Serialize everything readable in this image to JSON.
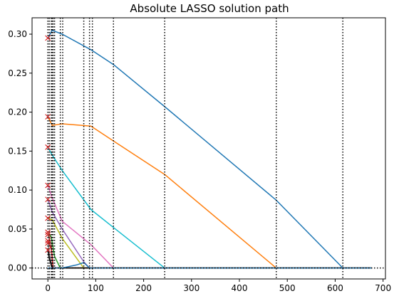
{
  "chart_data": {
    "type": "line",
    "title": "Absolute LASSO solution path",
    "xlabel": "",
    "ylabel": "",
    "xlim": [
      -33,
      705
    ],
    "ylim": [
      -0.014,
      0.321
    ],
    "xticks": [
      0,
      100,
      200,
      300,
      400,
      500,
      600,
      700
    ],
    "yticks": [
      0.0,
      0.05,
      0.1,
      0.15,
      0.2,
      0.25,
      0.3
    ],
    "ytick_labels": [
      "0.00",
      "0.05",
      "0.10",
      "0.15",
      "0.20",
      "0.25",
      "0.30"
    ],
    "grid": false,
    "legend": "none",
    "vlines": [
      0,
      3,
      7,
      9,
      11,
      14,
      26,
      31,
      75,
      87,
      93,
      137,
      244,
      477,
      616
    ],
    "hline_y": 0,
    "markers": {
      "color": "#d62728",
      "symbol": "x",
      "x": [
        0,
        0,
        0,
        0,
        0,
        0,
        0,
        0,
        0,
        0,
        0
      ],
      "y": [
        0.295,
        0.194,
        0.155,
        0.106,
        0.088,
        0.064,
        0.046,
        0.043,
        0.035,
        0.032,
        0.023
      ]
    },
    "series": [
      {
        "color": "#1f77b4",
        "x": [
          0,
          9,
          30,
          90,
          137,
          244,
          477,
          616,
          676
        ],
        "y": [
          0.295,
          0.305,
          0.3,
          0.28,
          0.261,
          0.207,
          0.087,
          0.0,
          0.0
        ]
      },
      {
        "color": "#ff7f0e",
        "x": [
          0,
          9,
          30,
          90,
          137,
          244,
          477,
          676
        ],
        "y": [
          0.194,
          0.183,
          0.185,
          0.182,
          0.163,
          0.12,
          0.0,
          0.0
        ]
      },
      {
        "color": "#17becf",
        "x": [
          0,
          9,
          30,
          90,
          137,
          244,
          676
        ],
        "y": [
          0.155,
          0.145,
          0.125,
          0.075,
          0.052,
          0.0,
          0.0
        ]
      },
      {
        "color": "#e377c2",
        "x": [
          0,
          9,
          30,
          90,
          137,
          676
        ],
        "y": [
          0.106,
          0.09,
          0.06,
          0.03,
          0.0,
          0.0
        ]
      },
      {
        "color": "#9467bd",
        "x": [
          0,
          9,
          30,
          75,
          87,
          676
        ],
        "y": [
          0.088,
          0.072,
          0.05,
          0.008,
          0.0,
          0.0
        ]
      },
      {
        "color": "#bcbd22",
        "x": [
          0,
          9,
          30,
          75,
          676
        ],
        "y": [
          0.064,
          0.062,
          0.038,
          0.0,
          0.0
        ]
      },
      {
        "color": "#2ca02c",
        "x": [
          0,
          7,
          14,
          26,
          676
        ],
        "y": [
          0.046,
          0.04,
          0.015,
          0.0,
          0.0
        ]
      },
      {
        "color": "#8c564b",
        "x": [
          0,
          7,
          11,
          676
        ],
        "y": [
          0.043,
          0.03,
          0.0,
          0.0
        ]
      },
      {
        "color": "#d62728",
        "x": [
          0,
          7,
          11,
          676
        ],
        "y": [
          0.035,
          0.025,
          0.0,
          0.0
        ]
      },
      {
        "color": "#7f7f7f",
        "x": [
          0,
          3,
          9,
          676
        ],
        "y": [
          0.032,
          0.02,
          0.0,
          0.0
        ]
      },
      {
        "color": "#000000",
        "x": [
          0,
          3,
          9,
          676
        ],
        "y": [
          0.023,
          0.012,
          0.0,
          0.0
        ]
      },
      {
        "color": "#1f77b4",
        "x": [
          0,
          30,
          60,
          75,
          87,
          676
        ],
        "y": [
          0.0,
          0.0,
          0.004,
          0.007,
          0.0,
          0.0
        ]
      }
    ]
  }
}
